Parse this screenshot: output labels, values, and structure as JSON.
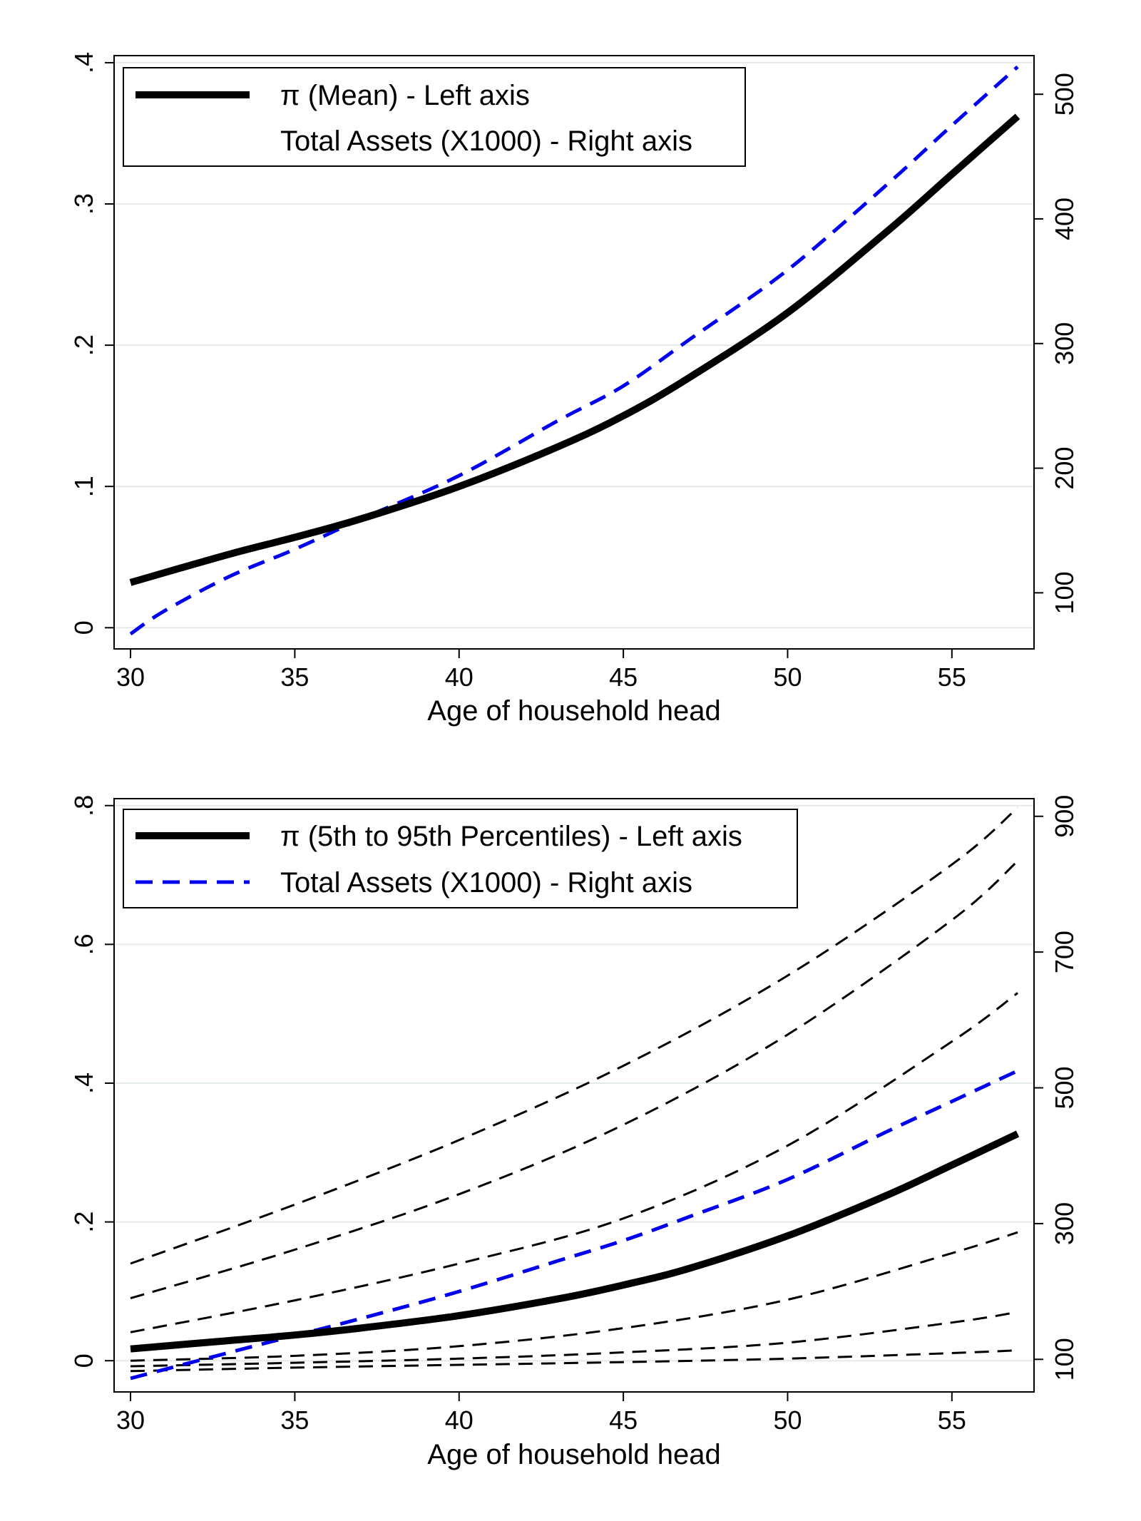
{
  "chart_data": [
    {
      "type": "line",
      "xlabel": "Age of household head",
      "x_ticks": [
        30,
        35,
        40,
        45,
        50,
        55
      ],
      "xlim": [
        29.5,
        57.5
      ],
      "y_left": {
        "ticks": [
          0,
          0.1,
          0.2,
          0.3,
          0.4
        ],
        "tick_labels": [
          "0",
          ".1",
          ".2",
          ".3",
          ".4"
        ],
        "lim": [
          -0.015,
          0.405
        ]
      },
      "y_right": {
        "ticks": [
          100,
          200,
          300,
          400,
          500
        ],
        "tick_labels": [
          "100",
          "200",
          "300",
          "400",
          "500"
        ],
        "lim": [
          55,
          531
        ]
      },
      "grid": true,
      "legend_position": "top-left",
      "legend": [
        "π (Mean) - Left axis",
        "Total Assets (X1000) - Right axis"
      ],
      "series": [
        {
          "name": "π (Mean) - Left axis",
          "axis": "left",
          "style": "solid",
          "color": "#000000",
          "x": [
            30,
            33,
            35,
            37,
            40,
            43,
            45,
            47,
            50,
            53,
            55,
            57
          ],
          "y": [
            0.032,
            0.052,
            0.064,
            0.077,
            0.1,
            0.128,
            0.15,
            0.177,
            0.223,
            0.28,
            0.321,
            0.362
          ]
        },
        {
          "name": "Total Assets (X1000) - Right axis",
          "axis": "right",
          "style": "dashed",
          "color": "#0000ee",
          "x": [
            30,
            31,
            33,
            35,
            37,
            40,
            43,
            45,
            47,
            50,
            53,
            55,
            57
          ],
          "y": [
            67,
            85,
            113,
            135,
            159,
            194,
            238,
            266,
            303,
            359,
            427,
            475,
            522
          ]
        }
      ]
    },
    {
      "type": "line",
      "xlabel": "Age of household head",
      "x_ticks": [
        30,
        35,
        40,
        45,
        50,
        55
      ],
      "xlim": [
        29.5,
        57.5
      ],
      "y_left": {
        "ticks": [
          0,
          0.2,
          0.4,
          0.6,
          0.8
        ],
        "tick_labels": [
          "0",
          ".2",
          ".4",
          ".6",
          ".8"
        ],
        "lim": [
          -0.045,
          0.81
        ]
      },
      "y_right": {
        "ticks": [
          100,
          300,
          500,
          700,
          900
        ],
        "tick_labels": [
          "100",
          "300",
          "500",
          "700",
          "900"
        ],
        "lim": [
          52,
          926
        ]
      },
      "grid": true,
      "legend_position": "top-left",
      "legend": [
        "π (5th to 95th Percentiles) - Left axis",
        "Total Assets (X1000) - Right axis"
      ],
      "series": [
        {
          "name": "π (5th to 95th Percentiles) - Left axis",
          "axis": "left",
          "style": "solid",
          "color": "#000000",
          "x": [
            30,
            33,
            35,
            37,
            40,
            43,
            45,
            47,
            50,
            53,
            55,
            57
          ],
          "y": [
            0.017,
            0.029,
            0.037,
            0.047,
            0.065,
            0.089,
            0.109,
            0.133,
            0.18,
            0.238,
            0.282,
            0.327
          ]
        },
        {
          "name": "Total Assets (X1000) - Right axis",
          "axis": "right",
          "style": "dashed",
          "color": "#0000ee",
          "x": [
            30,
            33,
            35,
            37,
            40,
            43,
            45,
            47,
            50,
            53,
            55,
            57
          ],
          "y": [
            72,
            110,
            135,
            160,
            200,
            245,
            275,
            310,
            365,
            435,
            480,
            525
          ]
        },
        {
          "axis": "left",
          "style": "dashed",
          "color": "#000000",
          "x": [
            30,
            35,
            40,
            45,
            50,
            55,
            57
          ],
          "y": [
            0.14,
            0.225,
            0.318,
            0.425,
            0.555,
            0.715,
            0.797
          ]
        },
        {
          "axis": "left",
          "style": "dashed",
          "color": "#000000",
          "x": [
            30,
            35,
            40,
            45,
            50,
            55,
            57
          ],
          "y": [
            0.09,
            0.16,
            0.24,
            0.34,
            0.47,
            0.635,
            0.72
          ]
        },
        {
          "axis": "left",
          "style": "dashed",
          "color": "#000000",
          "x": [
            30,
            35,
            40,
            45,
            50,
            55,
            57
          ],
          "y": [
            0.041,
            0.087,
            0.14,
            0.205,
            0.31,
            0.46,
            0.53
          ]
        },
        {
          "axis": "left",
          "style": "dashed",
          "color": "#000000",
          "x": [
            30,
            35,
            40,
            45,
            50,
            55,
            57
          ],
          "y": [
            0.0,
            0.007,
            0.021,
            0.047,
            0.088,
            0.155,
            0.185
          ]
        },
        {
          "axis": "left",
          "style": "dashed",
          "color": "#000000",
          "x": [
            30,
            35,
            40,
            45,
            50,
            55,
            57
          ],
          "y": [
            -0.008,
            -0.003,
            0.003,
            0.012,
            0.026,
            0.055,
            0.07
          ]
        },
        {
          "axis": "left",
          "style": "dashed",
          "color": "#000000",
          "x": [
            30,
            35,
            40,
            45,
            50,
            55,
            57
          ],
          "y": [
            -0.015,
            -0.01,
            -0.006,
            -0.002,
            0.003,
            0.011,
            0.015
          ]
        }
      ]
    }
  ]
}
